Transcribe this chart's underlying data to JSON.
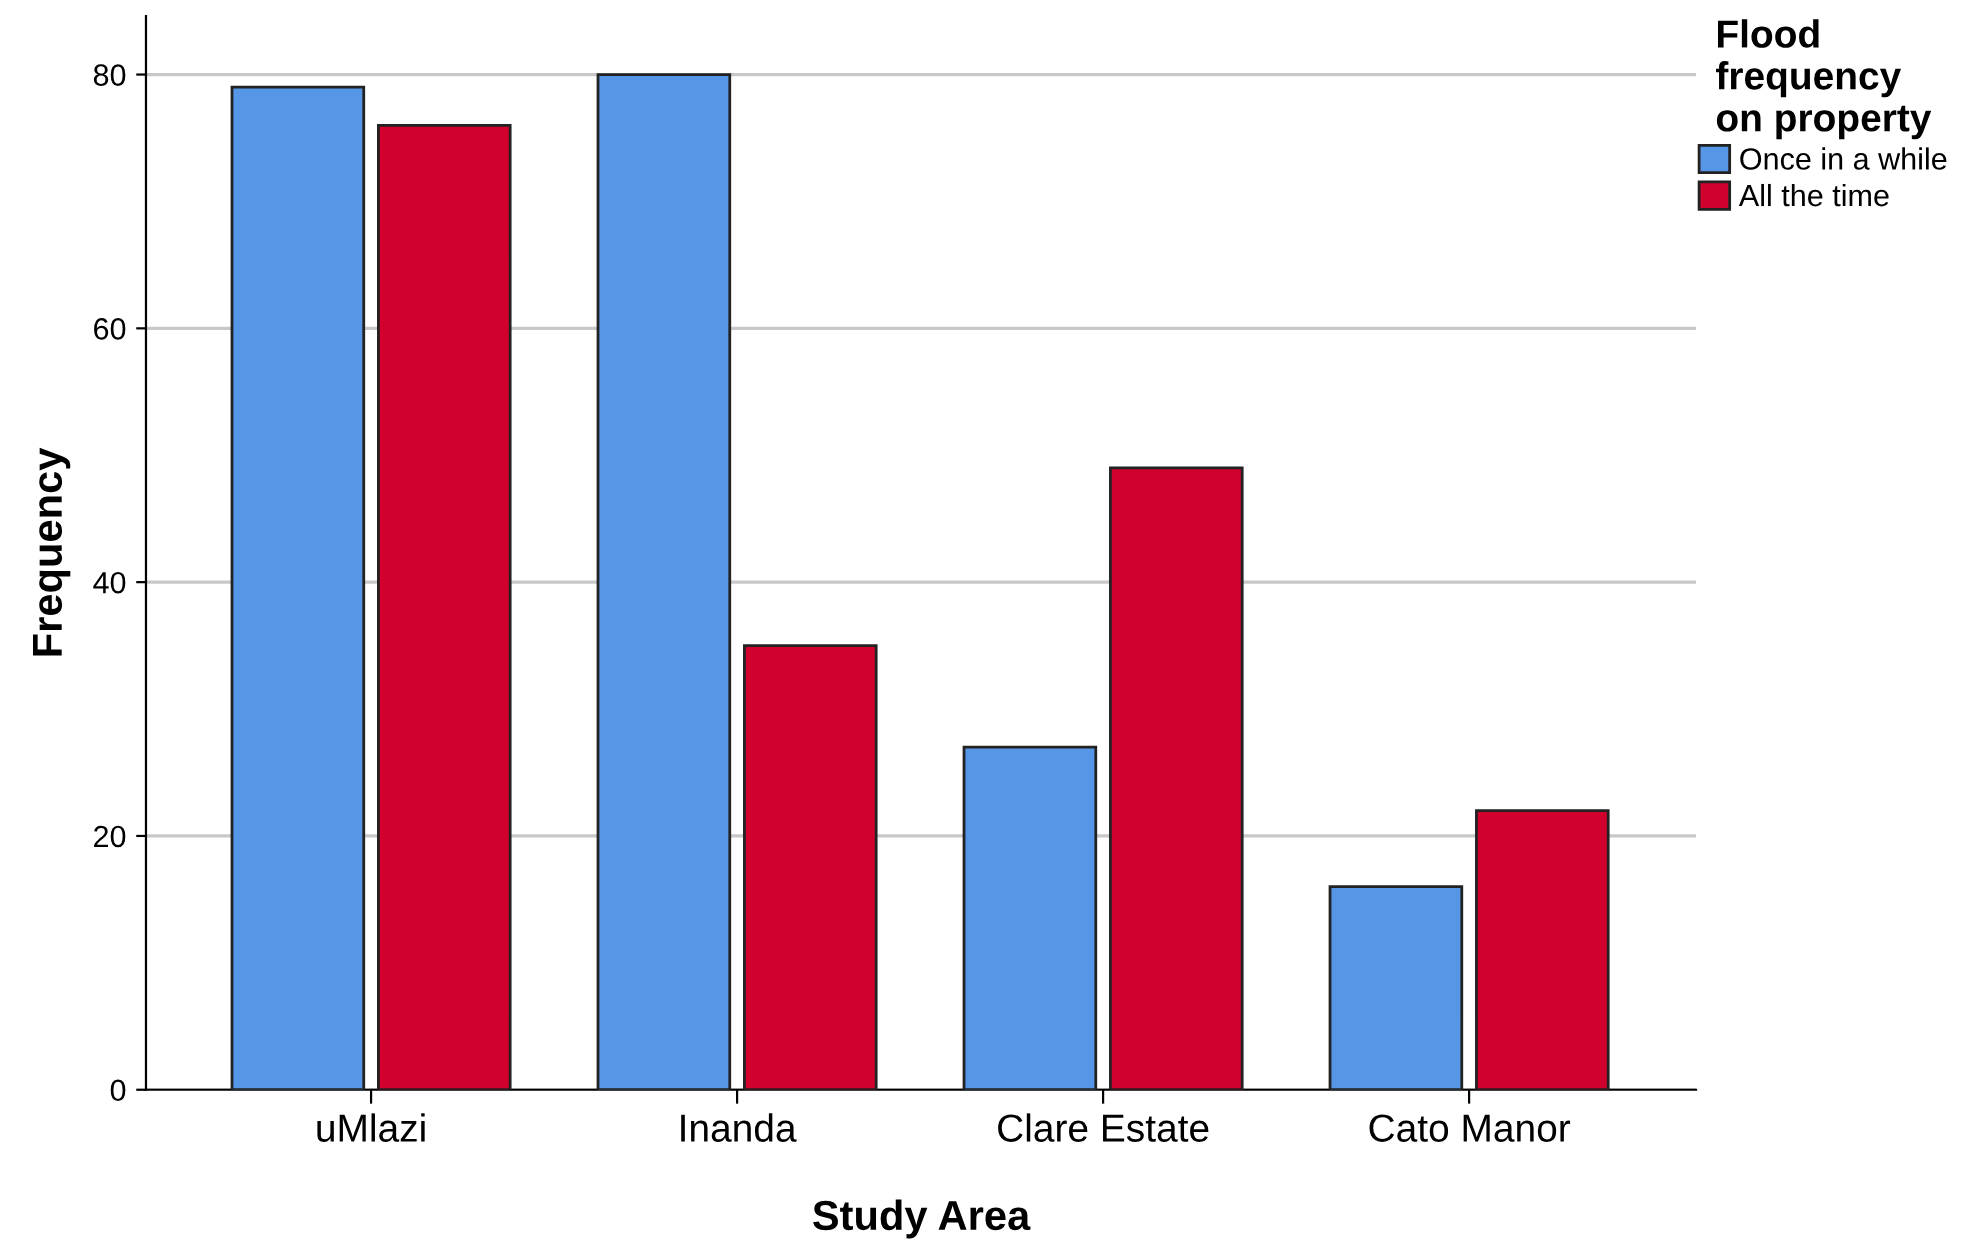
{
  "chart_data": {
    "type": "bar",
    "xlabel": "Study Area",
    "ylabel": "Frequency",
    "legend_title": "Flood\nfrequency\non property",
    "categories": [
      "uMlazi",
      "Inanda",
      "Clare Estate",
      "Cato Manor"
    ],
    "series": [
      {
        "name": "Once in a while",
        "color": "#5596e6",
        "values": [
          79,
          80,
          27,
          16
        ]
      },
      {
        "name": "All the time",
        "color": "#d2002d",
        "values": [
          76,
          35,
          49,
          22
        ]
      }
    ],
    "ylim": [
      0,
      84.6
    ],
    "yticks": [
      0,
      20,
      40,
      60,
      80
    ],
    "grid": "y",
    "legend": "top right"
  }
}
